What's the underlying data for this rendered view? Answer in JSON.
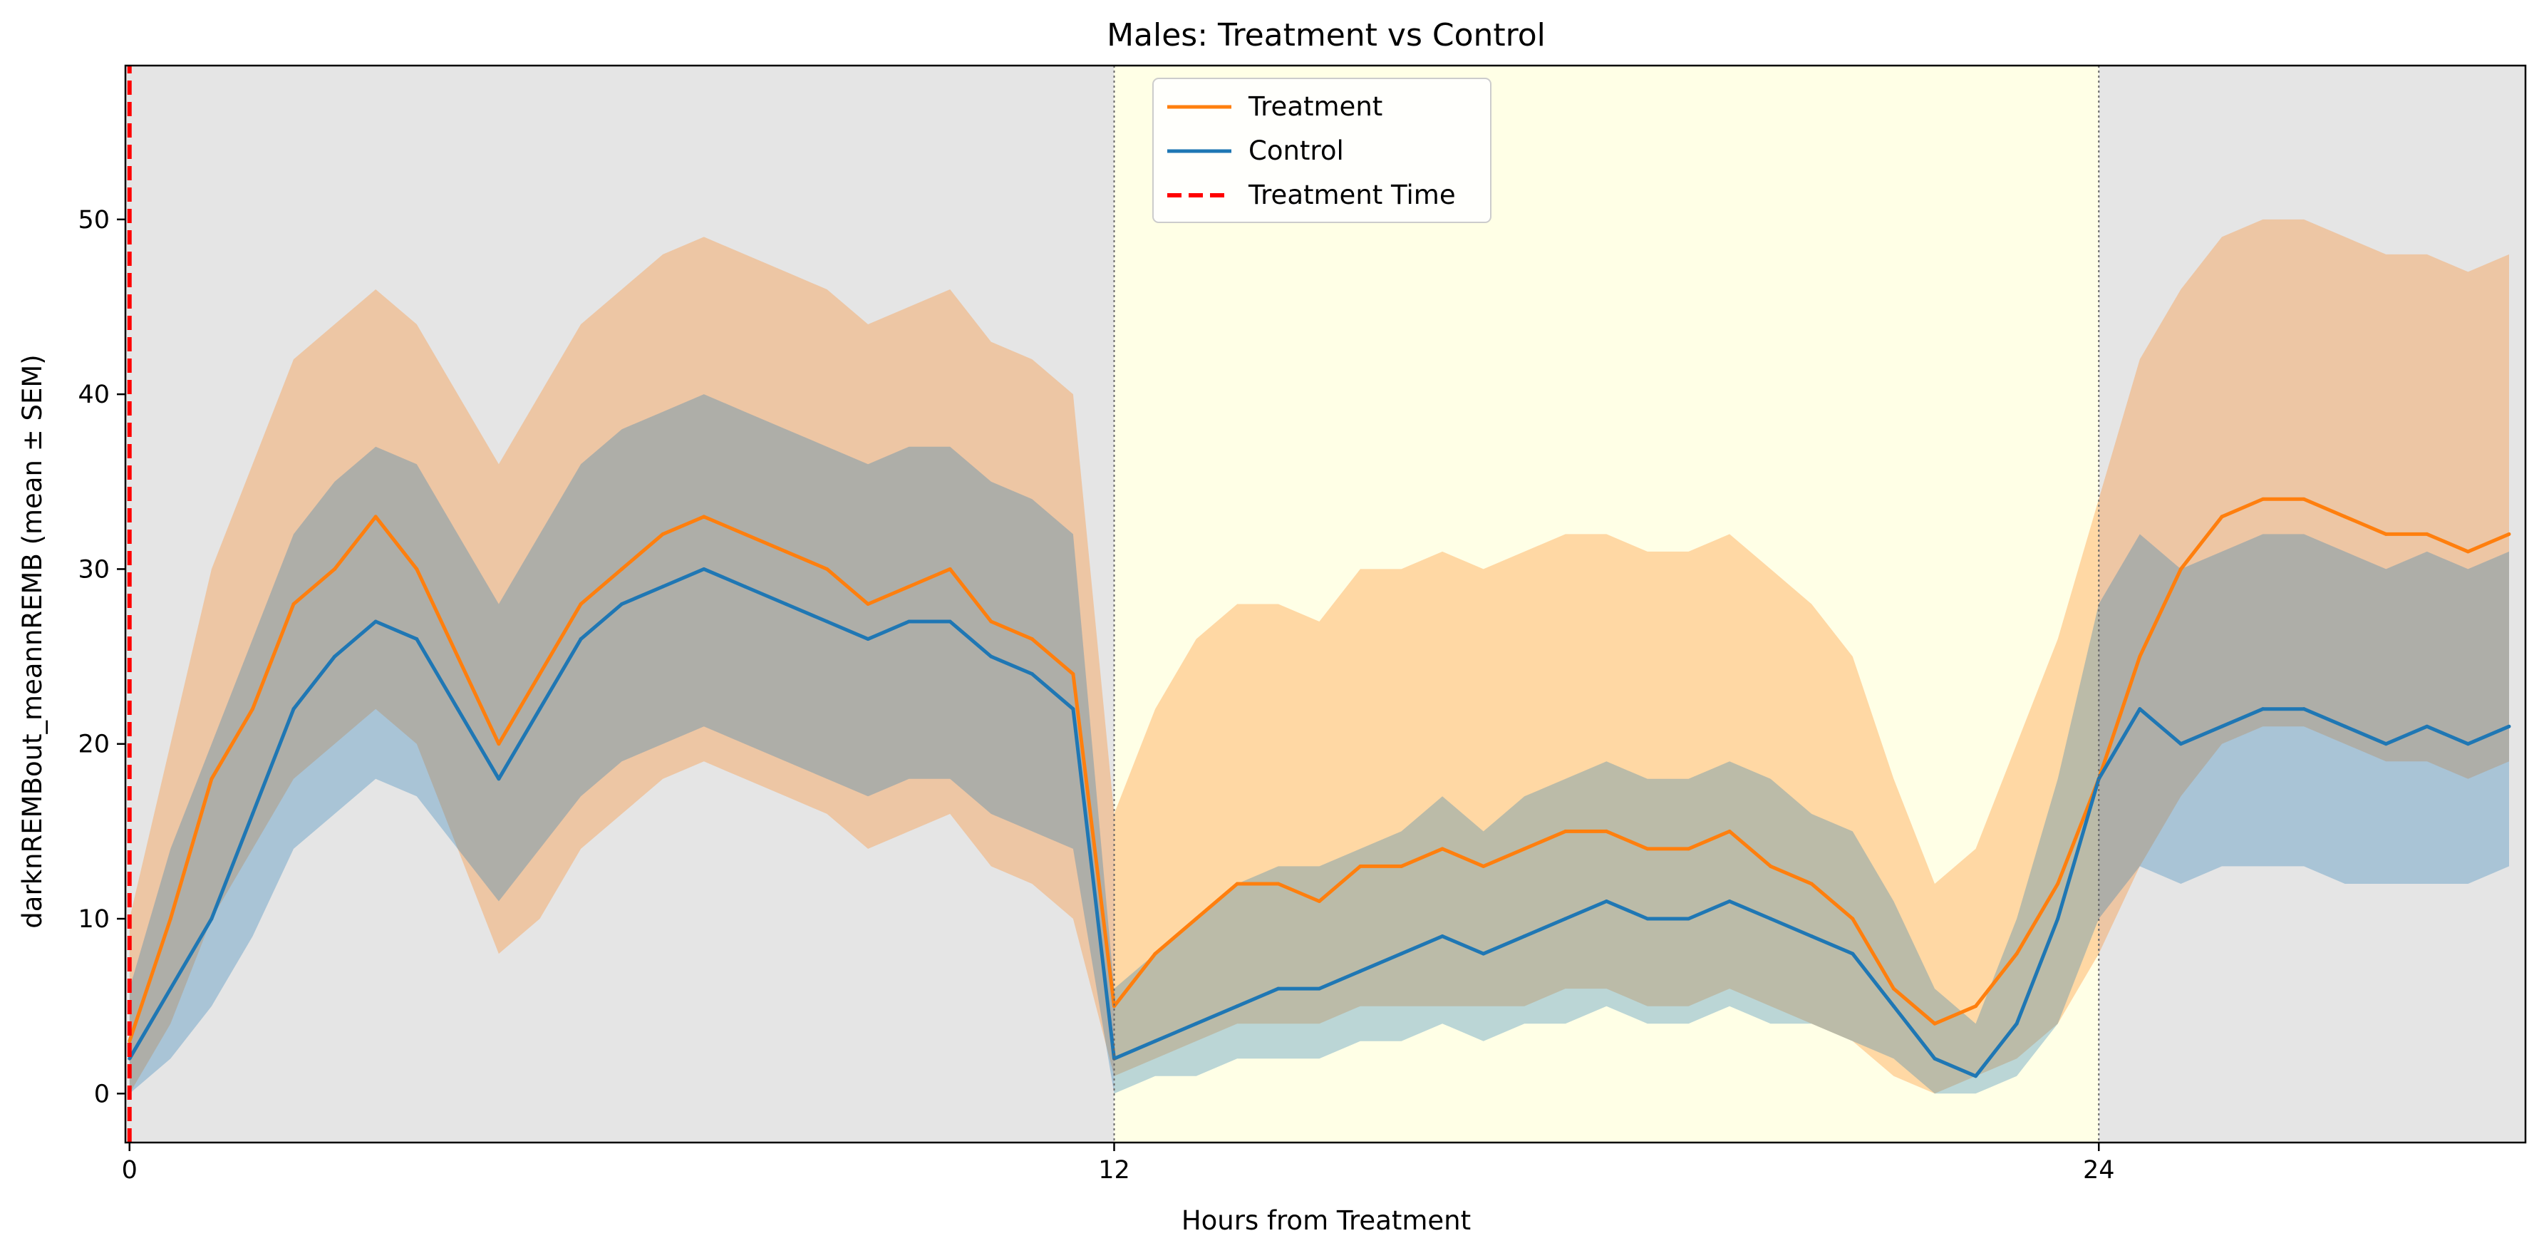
{
  "chart_data": {
    "type": "line",
    "title": "Males: Treatment vs Control",
    "xlabel": "Hours from Treatment",
    "ylabel": "darknREMBout_meannREMB (mean ± SEM)",
    "xlim": [
      -0.05,
      29.2
    ],
    "ylim": [
      -2.8,
      58.8
    ],
    "x_ticks": [
      0,
      12,
      24
    ],
    "x_tick_labels": [
      "0",
      "12",
      "24"
    ],
    "y_ticks": [
      0,
      10,
      20,
      30,
      40,
      50
    ],
    "y_tick_labels": [
      "0",
      "10",
      "20",
      "30",
      "40",
      "50"
    ],
    "grid": false,
    "legend_position": "top-center",
    "background_bands": [
      {
        "start": -0.05,
        "end": 12,
        "phase": "dark",
        "color": "#e5e5e5"
      },
      {
        "start": 12,
        "end": 24,
        "phase": "light",
        "color": "#ffffe6"
      },
      {
        "start": 24,
        "end": 29.2,
        "phase": "dark",
        "color": "#e5e5e5"
      }
    ],
    "phase_boundaries": [
      12,
      24
    ],
    "treatment_time": 0,
    "series": [
      {
        "name": "Treatment",
        "color": "#ff7f0e",
        "style": "solid",
        "x": [
          0,
          0.5,
          1,
          1.5,
          2,
          2.5,
          3,
          3.5,
          4,
          4.5,
          5,
          5.5,
          6,
          6.5,
          7,
          7.5,
          8,
          8.5,
          9,
          9.5,
          10,
          10.5,
          11,
          11.5,
          12,
          12.5,
          13,
          13.5,
          14,
          14.5,
          15,
          15.5,
          16,
          16.5,
          17,
          17.5,
          18,
          18.5,
          19,
          19.5,
          20,
          20.5,
          21,
          21.5,
          22,
          22.5,
          23,
          23.5,
          24,
          24.5,
          25,
          25.5,
          26,
          26.5,
          27,
          27.5,
          28,
          28.5,
          29
        ],
        "mean": [
          3,
          10,
          18,
          22,
          28,
          30,
          33,
          30,
          25,
          20,
          24,
          28,
          30,
          32,
          33,
          32,
          31,
          30,
          28,
          29,
          30,
          27,
          26,
          24,
          5,
          8,
          10,
          12,
          12,
          11,
          13,
          13,
          14,
          13,
          14,
          15,
          15,
          14,
          14,
          15,
          13,
          12,
          10,
          6,
          4,
          5,
          8,
          12,
          18,
          25,
          30,
          33,
          34,
          34,
          33,
          32,
          32,
          31,
          32
        ],
        "band_lower": [
          0,
          4,
          10,
          14,
          18,
          20,
          22,
          20,
          14,
          8,
          10,
          14,
          16,
          18,
          19,
          18,
          17,
          16,
          14,
          15,
          16,
          13,
          12,
          10,
          1,
          2,
          3,
          4,
          4,
          4,
          5,
          5,
          5,
          5,
          5,
          6,
          6,
          5,
          5,
          6,
          5,
          4,
          3,
          1,
          0,
          1,
          2,
          4,
          8,
          13,
          17,
          20,
          21,
          21,
          20,
          19,
          19,
          18,
          19
        ],
        "band_upper": [
          10,
          20,
          30,
          36,
          42,
          44,
          46,
          44,
          40,
          36,
          40,
          44,
          46,
          48,
          49,
          48,
          47,
          46,
          44,
          45,
          46,
          43,
          42,
          40,
          16,
          22,
          26,
          28,
          28,
          27,
          30,
          30,
          31,
          30,
          31,
          32,
          32,
          31,
          31,
          32,
          30,
          28,
          25,
          18,
          12,
          14,
          20,
          26,
          34,
          42,
          46,
          49,
          50,
          50,
          49,
          48,
          48,
          47,
          48
        ]
      },
      {
        "name": "Control",
        "color": "#1f77b4",
        "style": "solid",
        "x": [
          0,
          0.5,
          1,
          1.5,
          2,
          2.5,
          3,
          3.5,
          4,
          4.5,
          5,
          5.5,
          6,
          6.5,
          7,
          7.5,
          8,
          8.5,
          9,
          9.5,
          10,
          10.5,
          11,
          11.5,
          12,
          12.5,
          13,
          13.5,
          14,
          14.5,
          15,
          15.5,
          16,
          16.5,
          17,
          17.5,
          18,
          18.5,
          19,
          19.5,
          20,
          20.5,
          21,
          21.5,
          22,
          22.5,
          23,
          23.5,
          24,
          24.5,
          25,
          25.5,
          26,
          26.5,
          27,
          27.5,
          28,
          28.5,
          29
        ],
        "mean": [
          2,
          6,
          10,
          16,
          22,
          25,
          27,
          26,
          22,
          18,
          22,
          26,
          28,
          29,
          30,
          29,
          28,
          27,
          26,
          27,
          27,
          25,
          24,
          22,
          2,
          3,
          4,
          5,
          6,
          6,
          7,
          8,
          9,
          8,
          9,
          10,
          11,
          10,
          10,
          11,
          10,
          9,
          8,
          5,
          2,
          1,
          4,
          10,
          18,
          22,
          20,
          21,
          22,
          22,
          21,
          20,
          21,
          20,
          21
        ],
        "band_lower": [
          0,
          2,
          5,
          9,
          14,
          16,
          18,
          17,
          14,
          11,
          14,
          17,
          19,
          20,
          21,
          20,
          19,
          18,
          17,
          18,
          18,
          16,
          15,
          14,
          0,
          1,
          1,
          2,
          2,
          2,
          3,
          3,
          4,
          3,
          4,
          4,
          5,
          4,
          4,
          5,
          4,
          4,
          3,
          2,
          0,
          0,
          1,
          4,
          10,
          13,
          12,
          13,
          13,
          13,
          12,
          12,
          12,
          12,
          13
        ],
        "band_upper": [
          6,
          14,
          20,
          26,
          32,
          35,
          37,
          36,
          32,
          28,
          32,
          36,
          38,
          39,
          40,
          39,
          38,
          37,
          36,
          37,
          37,
          35,
          34,
          32,
          6,
          8,
          10,
          12,
          13,
          13,
          14,
          15,
          17,
          15,
          17,
          18,
          19,
          18,
          18,
          19,
          18,
          16,
          15,
          11,
          6,
          4,
          10,
          18,
          28,
          32,
          30,
          31,
          32,
          32,
          31,
          30,
          31,
          30,
          31
        ]
      },
      {
        "name": "Treatment Time",
        "color": "#ff0000",
        "style": "dashed",
        "x": [
          0,
          0
        ],
        "values": [
          -2.8,
          58.8
        ]
      }
    ],
    "data_range_note_values": {
      "min": 0,
      "max": 56
    }
  }
}
